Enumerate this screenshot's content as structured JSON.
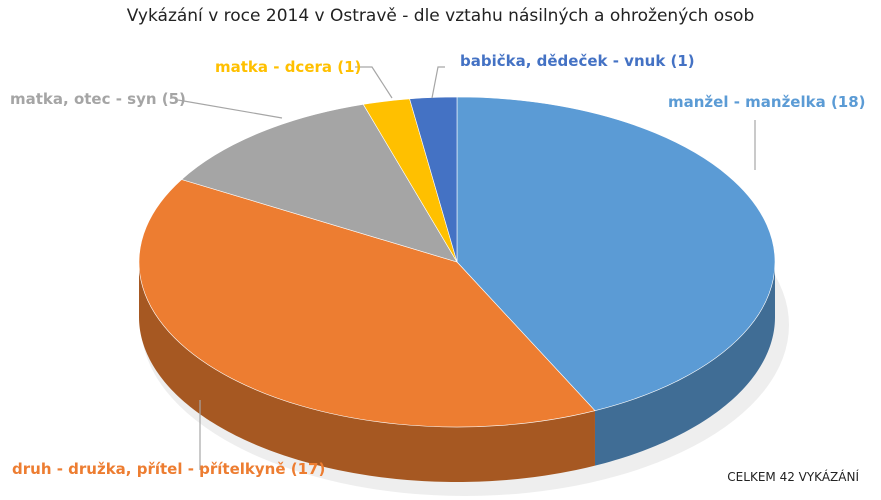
{
  "chart_data": {
    "type": "pie",
    "title": "Vykázání v roce 2014 v Ostravě - dle vztahu násilných a ohrožených osob",
    "three_d": true,
    "slices": [
      {
        "label": "manžel - manželka (18)",
        "value": 18,
        "color": "#5B9BD5"
      },
      {
        "label": "druh - družka, přítel - přítelkyně (17)",
        "value": 17,
        "color": "#ED7D31"
      },
      {
        "label": "matka, otec - syn (5)",
        "value": 5,
        "color": "#A5A5A5"
      },
      {
        "label": "matka - dcera (1)",
        "value": 1,
        "color": "#FFC000"
      },
      {
        "label": "babička, dědeček - vnuk (1)",
        "value": 1,
        "color": "#4472C4"
      }
    ],
    "annotation": "CELKEM 42 VYKÁZÁNÍ"
  }
}
